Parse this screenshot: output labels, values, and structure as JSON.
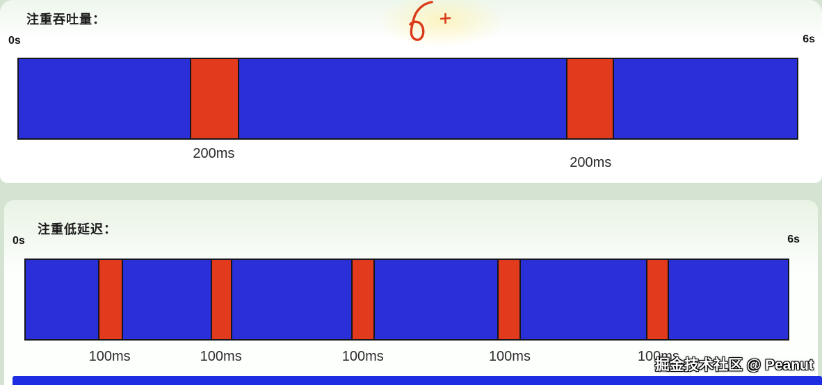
{
  "colors": {
    "bar_blue": "#2a2fd8",
    "pause_red": "#e23a1c",
    "strip_blue": "#1c2de2",
    "bar_border": "#15151c",
    "annotation_red": "#d93a18"
  },
  "annotation": {
    "type": "hand-drawn red scribble loop with plus mark",
    "plus": "+"
  },
  "watermark": {
    "text": "掘金技术社区 @ Peanut"
  },
  "panels": [
    {
      "id": "throughput",
      "title": "注重吞吐量：",
      "axis_start": "0s",
      "axis_end": "6s",
      "total_duration": "6s",
      "pause_duration_ms": 200,
      "pauses": [
        {
          "label": "200ms",
          "left_pct": 22.0,
          "width_pct": 6.3,
          "label_dy": 0
        },
        {
          "label": "200ms",
          "left_pct": 70.3,
          "width_pct": 6.2,
          "label_dy": 13
        }
      ]
    },
    {
      "id": "low-latency",
      "title": "注重低延迟：",
      "axis_start": "0s",
      "axis_end": "6s",
      "total_duration": "6s",
      "pause_duration_ms": 100,
      "pauses": [
        {
          "label": "100ms",
          "left_pct": 9.5,
          "width_pct": 3.3,
          "label_dy": 0
        },
        {
          "label": "100ms",
          "left_pct": 24.3,
          "width_pct": 2.8,
          "label_dy": 0
        },
        {
          "label": "100ms",
          "left_pct": 42.7,
          "width_pct": 3.1,
          "label_dy": 0
        },
        {
          "label": "100ms",
          "left_pct": 61.9,
          "width_pct": 3.1,
          "label_dy": 0
        },
        {
          "label": "100ms",
          "left_pct": 81.4,
          "width_pct": 3.0,
          "label_dy": 0
        }
      ]
    }
  ]
}
